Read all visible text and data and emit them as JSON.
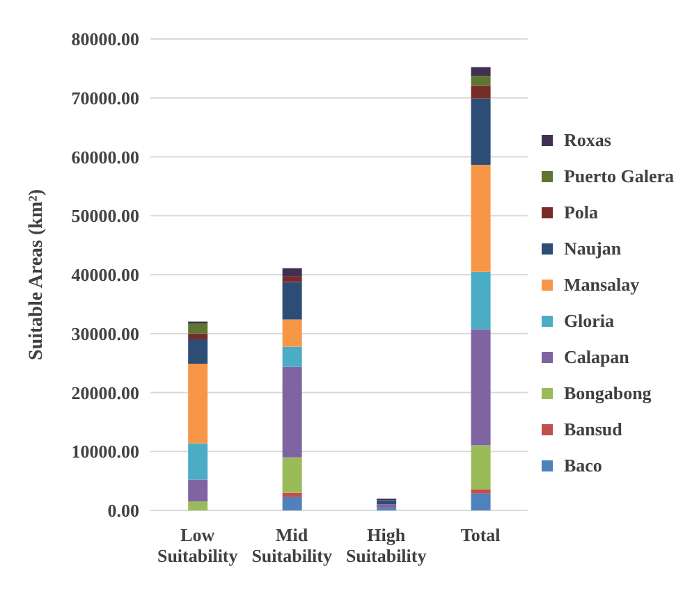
{
  "chart_data": {
    "type": "bar",
    "stacked": true,
    "ylabel": "Suitable Areas (km²)",
    "categories": [
      "Low Suitability",
      "Mid Suitability",
      "High Suitability",
      "Total"
    ],
    "series": [
      {
        "name": "Baco",
        "color": "#4f81bd",
        "values": [
          0,
          2250,
          400,
          2850
        ]
      },
      {
        "name": "Bansud",
        "color": "#c0504d",
        "values": [
          0,
          750,
          0,
          750
        ]
      },
      {
        "name": "Bongabong",
        "color": "#9bbb59",
        "values": [
          1500,
          6000,
          0,
          7425
        ]
      },
      {
        "name": "Calapan",
        "color": "#8064a2",
        "values": [
          3750,
          15375,
          600,
          19725
        ]
      },
      {
        "name": "Gloria",
        "color": "#4bacc6",
        "values": [
          6150,
          3375,
          0,
          9750
        ]
      },
      {
        "name": "Mansalay",
        "color": "#f79646",
        "values": [
          13500,
          4650,
          0,
          18150
        ]
      },
      {
        "name": "Naujan",
        "color": "#2c4d75",
        "values": [
          4130,
          6375,
          700,
          11250
        ]
      },
      {
        "name": "Pola",
        "color": "#772c2a",
        "values": [
          975,
          975,
          0,
          2100
        ]
      },
      {
        "name": "Puerto Galera",
        "color": "#5f7530",
        "values": [
          1725,
          0,
          0,
          1725
        ]
      },
      {
        "name": "Roxas",
        "color": "#403152",
        "values": [
          300,
          1350,
          300,
          1500
        ]
      }
    ],
    "ylim": [
      0,
      80000
    ],
    "yticks": [
      {
        "value": 0,
        "label": "0.00"
      },
      {
        "value": 10000,
        "label": "10000.00"
      },
      {
        "value": 20000,
        "label": "20000.00"
      },
      {
        "value": 30000,
        "label": "30000.00"
      },
      {
        "value": 40000,
        "label": "40000.00"
      },
      {
        "value": 50000,
        "label": "50000.00"
      },
      {
        "value": 60000,
        "label": "60000.00"
      },
      {
        "value": 70000,
        "label": "70000.00"
      },
      {
        "value": 80000,
        "label": "80000.00"
      }
    ],
    "grid": "y",
    "legend": "right"
  }
}
